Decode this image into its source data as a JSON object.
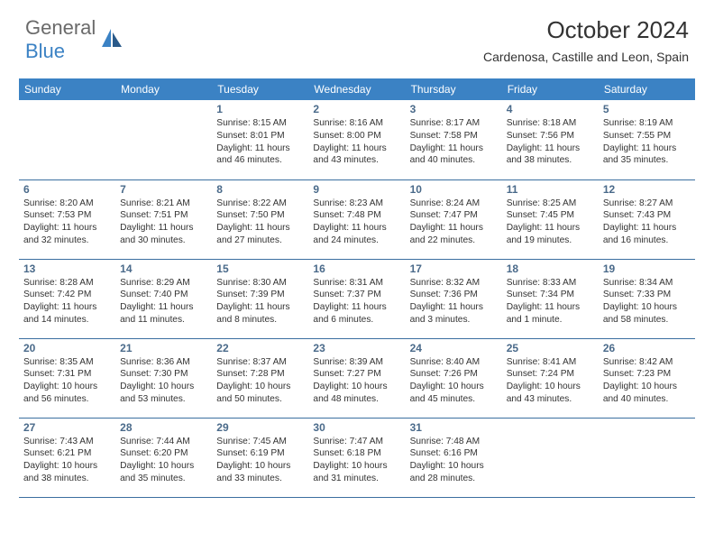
{
  "logo": {
    "text1": "General",
    "text2": "Blue"
  },
  "title": "October 2024",
  "location": "Cardenosa, Castille and Leon, Spain",
  "colors": {
    "header_bg": "#3b82c4",
    "header_text": "#ffffff",
    "daynum": "#4a6a8a",
    "border": "#3b6fa0",
    "body_text": "#333333",
    "logo_gray": "#6a6a6a",
    "logo_blue": "#3b82c4"
  },
  "weekdays": [
    "Sunday",
    "Monday",
    "Tuesday",
    "Wednesday",
    "Thursday",
    "Friday",
    "Saturday"
  ],
  "weeks": [
    [
      null,
      null,
      {
        "d": "1",
        "sr": "Sunrise: 8:15 AM",
        "ss": "Sunset: 8:01 PM",
        "dl1": "Daylight: 11 hours",
        "dl2": "and 46 minutes."
      },
      {
        "d": "2",
        "sr": "Sunrise: 8:16 AM",
        "ss": "Sunset: 8:00 PM",
        "dl1": "Daylight: 11 hours",
        "dl2": "and 43 minutes."
      },
      {
        "d": "3",
        "sr": "Sunrise: 8:17 AM",
        "ss": "Sunset: 7:58 PM",
        "dl1": "Daylight: 11 hours",
        "dl2": "and 40 minutes."
      },
      {
        "d": "4",
        "sr": "Sunrise: 8:18 AM",
        "ss": "Sunset: 7:56 PM",
        "dl1": "Daylight: 11 hours",
        "dl2": "and 38 minutes."
      },
      {
        "d": "5",
        "sr": "Sunrise: 8:19 AM",
        "ss": "Sunset: 7:55 PM",
        "dl1": "Daylight: 11 hours",
        "dl2": "and 35 minutes."
      }
    ],
    [
      {
        "d": "6",
        "sr": "Sunrise: 8:20 AM",
        "ss": "Sunset: 7:53 PM",
        "dl1": "Daylight: 11 hours",
        "dl2": "and 32 minutes."
      },
      {
        "d": "7",
        "sr": "Sunrise: 8:21 AM",
        "ss": "Sunset: 7:51 PM",
        "dl1": "Daylight: 11 hours",
        "dl2": "and 30 minutes."
      },
      {
        "d": "8",
        "sr": "Sunrise: 8:22 AM",
        "ss": "Sunset: 7:50 PM",
        "dl1": "Daylight: 11 hours",
        "dl2": "and 27 minutes."
      },
      {
        "d": "9",
        "sr": "Sunrise: 8:23 AM",
        "ss": "Sunset: 7:48 PM",
        "dl1": "Daylight: 11 hours",
        "dl2": "and 24 minutes."
      },
      {
        "d": "10",
        "sr": "Sunrise: 8:24 AM",
        "ss": "Sunset: 7:47 PM",
        "dl1": "Daylight: 11 hours",
        "dl2": "and 22 minutes."
      },
      {
        "d": "11",
        "sr": "Sunrise: 8:25 AM",
        "ss": "Sunset: 7:45 PM",
        "dl1": "Daylight: 11 hours",
        "dl2": "and 19 minutes."
      },
      {
        "d": "12",
        "sr": "Sunrise: 8:27 AM",
        "ss": "Sunset: 7:43 PM",
        "dl1": "Daylight: 11 hours",
        "dl2": "and 16 minutes."
      }
    ],
    [
      {
        "d": "13",
        "sr": "Sunrise: 8:28 AM",
        "ss": "Sunset: 7:42 PM",
        "dl1": "Daylight: 11 hours",
        "dl2": "and 14 minutes."
      },
      {
        "d": "14",
        "sr": "Sunrise: 8:29 AM",
        "ss": "Sunset: 7:40 PM",
        "dl1": "Daylight: 11 hours",
        "dl2": "and 11 minutes."
      },
      {
        "d": "15",
        "sr": "Sunrise: 8:30 AM",
        "ss": "Sunset: 7:39 PM",
        "dl1": "Daylight: 11 hours",
        "dl2": "and 8 minutes."
      },
      {
        "d": "16",
        "sr": "Sunrise: 8:31 AM",
        "ss": "Sunset: 7:37 PM",
        "dl1": "Daylight: 11 hours",
        "dl2": "and 6 minutes."
      },
      {
        "d": "17",
        "sr": "Sunrise: 8:32 AM",
        "ss": "Sunset: 7:36 PM",
        "dl1": "Daylight: 11 hours",
        "dl2": "and 3 minutes."
      },
      {
        "d": "18",
        "sr": "Sunrise: 8:33 AM",
        "ss": "Sunset: 7:34 PM",
        "dl1": "Daylight: 11 hours",
        "dl2": "and 1 minute."
      },
      {
        "d": "19",
        "sr": "Sunrise: 8:34 AM",
        "ss": "Sunset: 7:33 PM",
        "dl1": "Daylight: 10 hours",
        "dl2": "and 58 minutes."
      }
    ],
    [
      {
        "d": "20",
        "sr": "Sunrise: 8:35 AM",
        "ss": "Sunset: 7:31 PM",
        "dl1": "Daylight: 10 hours",
        "dl2": "and 56 minutes."
      },
      {
        "d": "21",
        "sr": "Sunrise: 8:36 AM",
        "ss": "Sunset: 7:30 PM",
        "dl1": "Daylight: 10 hours",
        "dl2": "and 53 minutes."
      },
      {
        "d": "22",
        "sr": "Sunrise: 8:37 AM",
        "ss": "Sunset: 7:28 PM",
        "dl1": "Daylight: 10 hours",
        "dl2": "and 50 minutes."
      },
      {
        "d": "23",
        "sr": "Sunrise: 8:39 AM",
        "ss": "Sunset: 7:27 PM",
        "dl1": "Daylight: 10 hours",
        "dl2": "and 48 minutes."
      },
      {
        "d": "24",
        "sr": "Sunrise: 8:40 AM",
        "ss": "Sunset: 7:26 PM",
        "dl1": "Daylight: 10 hours",
        "dl2": "and 45 minutes."
      },
      {
        "d": "25",
        "sr": "Sunrise: 8:41 AM",
        "ss": "Sunset: 7:24 PM",
        "dl1": "Daylight: 10 hours",
        "dl2": "and 43 minutes."
      },
      {
        "d": "26",
        "sr": "Sunrise: 8:42 AM",
        "ss": "Sunset: 7:23 PM",
        "dl1": "Daylight: 10 hours",
        "dl2": "and 40 minutes."
      }
    ],
    [
      {
        "d": "27",
        "sr": "Sunrise: 7:43 AM",
        "ss": "Sunset: 6:21 PM",
        "dl1": "Daylight: 10 hours",
        "dl2": "and 38 minutes."
      },
      {
        "d": "28",
        "sr": "Sunrise: 7:44 AM",
        "ss": "Sunset: 6:20 PM",
        "dl1": "Daylight: 10 hours",
        "dl2": "and 35 minutes."
      },
      {
        "d": "29",
        "sr": "Sunrise: 7:45 AM",
        "ss": "Sunset: 6:19 PM",
        "dl1": "Daylight: 10 hours",
        "dl2": "and 33 minutes."
      },
      {
        "d": "30",
        "sr": "Sunrise: 7:47 AM",
        "ss": "Sunset: 6:18 PM",
        "dl1": "Daylight: 10 hours",
        "dl2": "and 31 minutes."
      },
      {
        "d": "31",
        "sr": "Sunrise: 7:48 AM",
        "ss": "Sunset: 6:16 PM",
        "dl1": "Daylight: 10 hours",
        "dl2": "and 28 minutes."
      },
      null,
      null
    ]
  ]
}
